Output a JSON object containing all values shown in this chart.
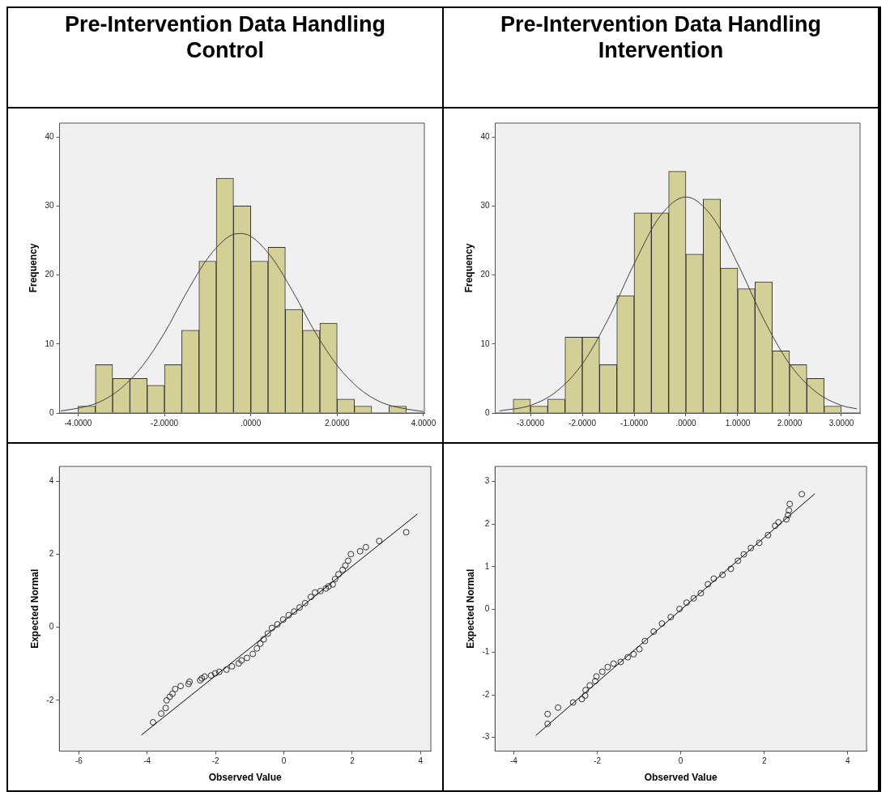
{
  "chart_data": [
    {
      "type": "histogram",
      "title": "Pre-Intervention Data Handling Control",
      "ylabel": "Frequency",
      "color": "#d3cf97",
      "bins": [
        -4,
        -3.6,
        -3.2,
        -2.8,
        -2.4,
        -2,
        -1.6,
        -1.2,
        -0.8,
        -0.4,
        0,
        0.4,
        0.8,
        1.2,
        1.6,
        2,
        2.4,
        2.8,
        3.2,
        3.6
      ],
      "values": [
        1,
        7,
        5,
        5,
        4,
        7,
        12,
        22,
        34,
        30,
        22,
        24,
        15,
        12,
        13,
        2,
        1,
        0,
        1
      ],
      "xlim": [
        -4.43,
        4.02
      ],
      "ylim": [
        0,
        42
      ],
      "xticks": [
        {
          "value": -4,
          "label": "-4.0000"
        },
        {
          "value": -2,
          "label": "-2.0000"
        },
        {
          "value": 0,
          "label": ".0000"
        },
        {
          "value": 2,
          "label": "2.0000"
        },
        {
          "value": 4,
          "label": "4.0000"
        }
      ],
      "yticks": [
        0,
        10,
        20,
        30,
        40
      ],
      "series": [
        {
          "type": "line",
          "color": "#404040",
          "x": [
            -4.4,
            -4,
            -3.5,
            -3,
            -2.5,
            -2,
            -1.5,
            -1,
            -0.5,
            -0.25,
            0,
            0.5,
            1,
            1.5,
            2,
            2.5,
            3,
            3.5,
            4
          ],
          "values": [
            0.3,
            0.7,
            1.6,
            3.6,
            6.9,
            11.6,
            17.3,
            22.4,
            25.6,
            26,
            25.6,
            22.4,
            17.3,
            11.6,
            6.9,
            3.6,
            1.6,
            0.7,
            0.2
          ]
        }
      ]
    },
    {
      "type": "histogram",
      "title": "Pre-Intervention Data Handling Intervention",
      "ylabel": "Frequency",
      "color": "#d3cf97",
      "bins": [
        -3.333,
        -3,
        -2.667,
        -2.333,
        -2,
        -1.667,
        -1.333,
        -1,
        -0.667,
        -0.333,
        0,
        0.333,
        0.667,
        1,
        1.333,
        1.667,
        2,
        2.333,
        2.667,
        3
      ],
      "values": [
        2,
        1,
        2,
        11,
        11,
        7,
        17,
        29,
        29,
        35,
        23,
        31,
        21,
        18,
        19,
        9,
        7,
        5,
        1
      ],
      "xlim": [
        -3.68,
        3.36
      ],
      "ylim": [
        0,
        42
      ],
      "xticks": [
        {
          "value": -3,
          "label": "-3.0000"
        },
        {
          "value": -2,
          "label": "-2.0000"
        },
        {
          "value": -1,
          "label": "-1.0000"
        },
        {
          "value": 0,
          "label": ".0000"
        },
        {
          "value": 1,
          "label": "1.0000"
        },
        {
          "value": 2,
          "label": "2.0000"
        },
        {
          "value": 3,
          "label": "3.0000"
        }
      ],
      "yticks": [
        0,
        10,
        20,
        30,
        40
      ],
      "series": [
        {
          "type": "line",
          "color": "#404040",
          "x": [
            -3.6,
            -3,
            -2.5,
            -2,
            -1.5,
            -1,
            -0.5,
            0,
            0.5,
            1,
            1.5,
            2,
            2.5,
            3,
            3.3
          ],
          "values": [
            0.3,
            1.1,
            3.1,
            7.1,
            13.6,
            21.6,
            28.5,
            31.3,
            28.5,
            21.6,
            13.6,
            7.1,
            3.1,
            1.1,
            0.6
          ]
        }
      ]
    },
    {
      "type": "scatter",
      "xlabel": "Observed Value",
      "ylabel": "Expected Normal",
      "xlim": [
        -6.57,
        4.3
      ],
      "ylim": [
        -3.39,
        4.4
      ],
      "xticks": [
        -6,
        -4,
        -2,
        0,
        2,
        4
      ],
      "yticks": [
        -2,
        0,
        2,
        4
      ],
      "series": [
        {
          "type": "scatter",
          "color": "#333333",
          "marker": "circle",
          "x": [
            -3.83,
            -3.59,
            -3.46,
            -3.43,
            -3.34,
            -3.26,
            -3.18,
            -3.02,
            -2.79,
            -2.76,
            -2.45,
            -2.4,
            -2.32,
            -2.13,
            -2.01,
            -1.89,
            -1.68,
            -1.52,
            -1.32,
            -1.24,
            -1.08,
            -0.91,
            -0.79,
            -0.69,
            -0.59,
            -0.47,
            -0.35,
            -0.19,
            -0.02,
            0.14,
            0.3,
            0.46,
            0.62,
            0.79,
            0.91,
            1.07,
            1.23,
            1.31,
            1.43,
            1.5,
            1.6,
            1.72,
            1.8,
            1.88,
            1.96,
            2.23,
            2.4,
            2.79,
            3.58
          ],
          "values": [
            -2.6,
            -2.36,
            -2.21,
            -2,
            -1.9,
            -1.82,
            -1.69,
            -1.61,
            -1.55,
            -1.49,
            -1.45,
            -1.4,
            -1.35,
            -1.32,
            -1.26,
            -1.22,
            -1.16,
            -1.07,
            -0.99,
            -0.91,
            -0.84,
            -0.73,
            -0.58,
            -0.45,
            -0.33,
            -0.17,
            -0.02,
            0.08,
            0.21,
            0.33,
            0.43,
            0.54,
            0.66,
            0.83,
            0.95,
            0.99,
            1.06,
            1.12,
            1.17,
            1.32,
            1.45,
            1.57,
            1.69,
            1.82,
            2,
            2.08,
            2.19,
            2.36,
            2.6
          ]
        },
        {
          "type": "line",
          "color": "#000000",
          "x": [
            -4.17,
            3.91
          ],
          "values": [
            -2.95,
            3.1
          ]
        }
      ]
    },
    {
      "type": "scatter",
      "xlabel": "Observed Value",
      "ylabel": "Expected Normal",
      "xlim": [
        -4.45,
        4.45
      ],
      "ylim": [
        -3.32,
        3.35
      ],
      "xticks": [
        -4,
        -2,
        0,
        2,
        4
      ],
      "yticks": [
        -3,
        -2,
        -1,
        0,
        1,
        2,
        3
      ],
      "series": [
        {
          "type": "scatter",
          "color": "#333333",
          "marker": "circle",
          "x": [
            -3.19,
            -3.19,
            -2.94,
            -2.58,
            -2.37,
            -2.29,
            -2.28,
            -2.18,
            -2.05,
            -2.02,
            -1.88,
            -1.75,
            -1.61,
            -1.44,
            -1.27,
            -1.13,
            -0.99,
            -0.86,
            -0.65,
            -0.45,
            -0.24,
            -0.03,
            0.14,
            0.31,
            0.48,
            0.65,
            0.79,
            1,
            1.2,
            1.37,
            1.51,
            1.68,
            1.88,
            2.09,
            2.26,
            2.34,
            2.53,
            2.57,
            2.59,
            2.61,
            2.9
          ],
          "values": [
            -2.68,
            -2.45,
            -2.3,
            -2.18,
            -2.1,
            -2.02,
            -1.89,
            -1.78,
            -1.68,
            -1.57,
            -1.46,
            -1.35,
            -1.27,
            -1.23,
            -1.12,
            -1.05,
            -0.93,
            -0.74,
            -0.52,
            -0.33,
            -0.18,
            0.01,
            0.16,
            0.26,
            0.38,
            0.59,
            0.72,
            0.81,
            0.95,
            1.14,
            1.29,
            1.44,
            1.56,
            1.74,
            1.96,
            2.04,
            2.11,
            2.21,
            2.32,
            2.47,
            2.7
          ]
        },
        {
          "type": "line",
          "color": "#000000",
          "x": [
            -3.47,
            3.21
          ],
          "values": [
            -2.95,
            2.71
          ]
        }
      ]
    }
  ]
}
